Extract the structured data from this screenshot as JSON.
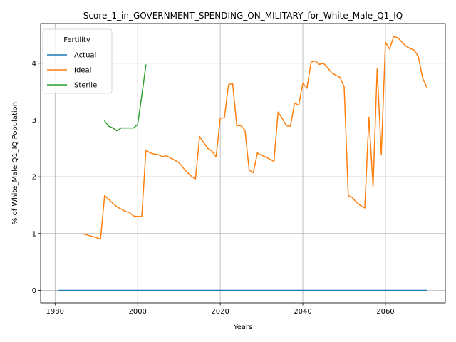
{
  "chart_data": {
    "type": "line",
    "title": "Score_1_in_GOVERNMENT_SPENDING_ON_MILITARY_for_White_Male_Q1_IQ",
    "xlabel": "Years",
    "ylabel": "% of White_Male Q1_IQ Population",
    "xlim": [
      1976.5,
      2074.5
    ],
    "ylim": [
      -0.22,
      4.7
    ],
    "xticks": [
      1980,
      2000,
      2020,
      2040,
      2060
    ],
    "yticks": [
      0,
      1,
      2,
      3,
      4
    ],
    "grid": true,
    "legend": {
      "title": "Fertility",
      "placement": "top-left"
    },
    "series": [
      {
        "name": "Actual",
        "color": "#1f77b4",
        "points": [
          [
            1981,
            0.0
          ],
          [
            2070,
            0.0
          ]
        ]
      },
      {
        "name": "Ideal",
        "color": "#ff7f0e",
        "points": [
          [
            1987,
            0.99
          ],
          [
            1988,
            0.97
          ],
          [
            1989,
            0.95
          ],
          [
            1990,
            0.93
          ],
          [
            1991,
            0.9
          ],
          [
            1992,
            1.67
          ],
          [
            1993,
            1.6
          ],
          [
            1994,
            1.53
          ],
          [
            1995,
            1.47
          ],
          [
            1996,
            1.43
          ],
          [
            1997,
            1.39
          ],
          [
            1998,
            1.37
          ],
          [
            1999,
            1.31
          ],
          [
            2000,
            1.3
          ],
          [
            2001,
            1.3
          ],
          [
            2002,
            2.47
          ],
          [
            2003,
            2.42
          ],
          [
            2004,
            2.4
          ],
          [
            2005,
            2.39
          ],
          [
            2006,
            2.35
          ],
          [
            2007,
            2.37
          ],
          [
            2008,
            2.33
          ],
          [
            2009,
            2.29
          ],
          [
            2010,
            2.25
          ],
          [
            2011,
            2.16
          ],
          [
            2012,
            2.08
          ],
          [
            2013,
            2.01
          ],
          [
            2014,
            1.96
          ],
          [
            2015,
            2.71
          ],
          [
            2016,
            2.6
          ],
          [
            2017,
            2.5
          ],
          [
            2018,
            2.45
          ],
          [
            2019,
            2.35
          ],
          [
            2020,
            3.03
          ],
          [
            2021,
            3.04
          ],
          [
            2022,
            3.62
          ],
          [
            2023,
            3.65
          ],
          [
            2024,
            2.9
          ],
          [
            2025,
            2.9
          ],
          [
            2026,
            2.82
          ],
          [
            2027,
            2.12
          ],
          [
            2028,
            2.07
          ],
          [
            2029,
            2.42
          ],
          [
            2030,
            2.38
          ],
          [
            2031,
            2.35
          ],
          [
            2032,
            2.31
          ],
          [
            2033,
            2.27
          ],
          [
            2034,
            3.14
          ],
          [
            2035,
            3.03
          ],
          [
            2036,
            2.9
          ],
          [
            2037,
            2.89
          ],
          [
            2038,
            3.3
          ],
          [
            2039,
            3.26
          ],
          [
            2040,
            3.65
          ],
          [
            2041,
            3.56
          ],
          [
            2042,
            4.02
          ],
          [
            2043,
            4.04
          ],
          [
            2044,
            3.98
          ],
          [
            2045,
            4.0
          ],
          [
            2046,
            3.92
          ],
          [
            2047,
            3.83
          ],
          [
            2048,
            3.79
          ],
          [
            2049,
            3.75
          ],
          [
            2050,
            3.59
          ],
          [
            2051,
            1.67
          ],
          [
            2052,
            1.63
          ],
          [
            2053,
            1.55
          ],
          [
            2054,
            1.49
          ],
          [
            2055,
            1.45
          ],
          [
            2056,
            3.05
          ],
          [
            2057,
            1.83
          ],
          [
            2058,
            3.9
          ],
          [
            2059,
            2.39
          ],
          [
            2060,
            4.37
          ],
          [
            2061,
            4.25
          ],
          [
            2062,
            4.47
          ],
          [
            2063,
            4.45
          ],
          [
            2064,
            4.37
          ],
          [
            2065,
            4.3
          ],
          [
            2066,
            4.26
          ],
          [
            2067,
            4.23
          ],
          [
            2068,
            4.11
          ],
          [
            2069,
            3.74
          ],
          [
            2070,
            3.58
          ]
        ]
      },
      {
        "name": "Sterile",
        "color": "#2ca02c",
        "points": [
          [
            1992,
            2.98
          ],
          [
            1993,
            2.89
          ],
          [
            1994,
            2.86
          ],
          [
            1995,
            2.81
          ],
          [
            1996,
            2.86
          ],
          [
            1997,
            2.86
          ],
          [
            1998,
            2.86
          ],
          [
            1999,
            2.86
          ],
          [
            2000,
            2.92
          ],
          [
            2001,
            3.43
          ],
          [
            2002,
            3.97
          ]
        ]
      }
    ]
  },
  "colors": {
    "background": "#ffffff",
    "grid": "#b0b0b0",
    "axes": "#000000"
  }
}
